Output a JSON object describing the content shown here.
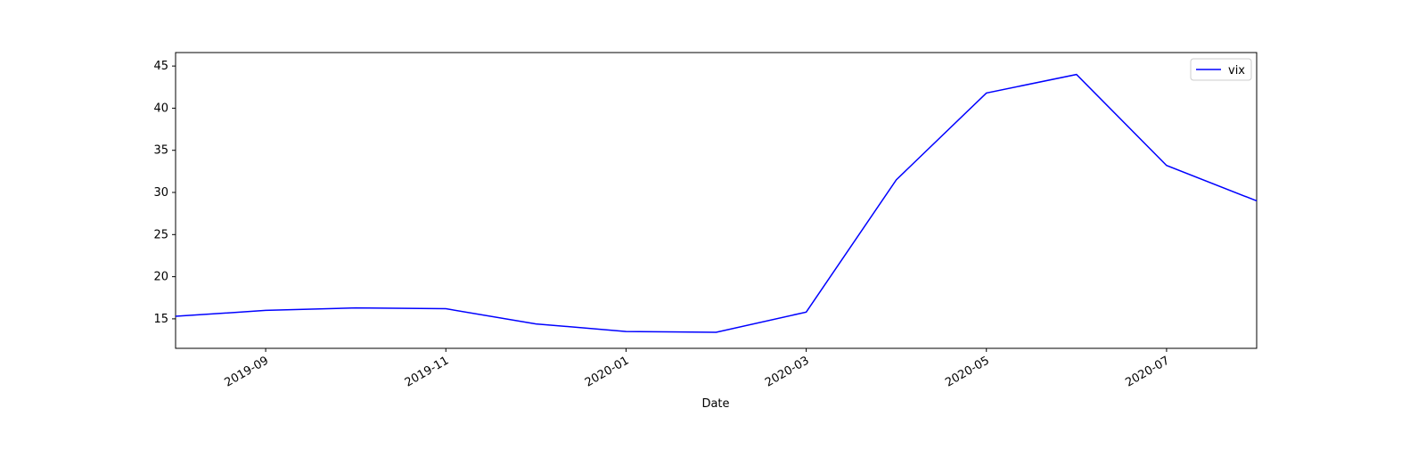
{
  "chart_data": {
    "type": "line",
    "xlabel": "Date",
    "x": [
      "2019-08",
      "2019-09",
      "2019-10",
      "2019-11",
      "2019-12",
      "2020-01",
      "2020-02",
      "2020-03",
      "2020-04",
      "2020-05",
      "2020-06",
      "2020-07",
      "2020-08"
    ],
    "series": [
      {
        "name": "vix",
        "color": "#0000ff",
        "values": [
          15.3,
          16.0,
          16.3,
          16.2,
          14.4,
          13.5,
          13.4,
          15.8,
          31.5,
          41.8,
          44.0,
          33.2,
          29.0
        ]
      }
    ],
    "xlim": [
      "2019-08",
      "2020-08"
    ],
    "xticks": [
      "2019-09",
      "2019-11",
      "2020-01",
      "2020-03",
      "2020-05",
      "2020-07"
    ],
    "ylim": [
      11.5,
      46.6
    ],
    "yticks": [
      15,
      20,
      25,
      30,
      35,
      40,
      45
    ],
    "legend": "upper right"
  }
}
